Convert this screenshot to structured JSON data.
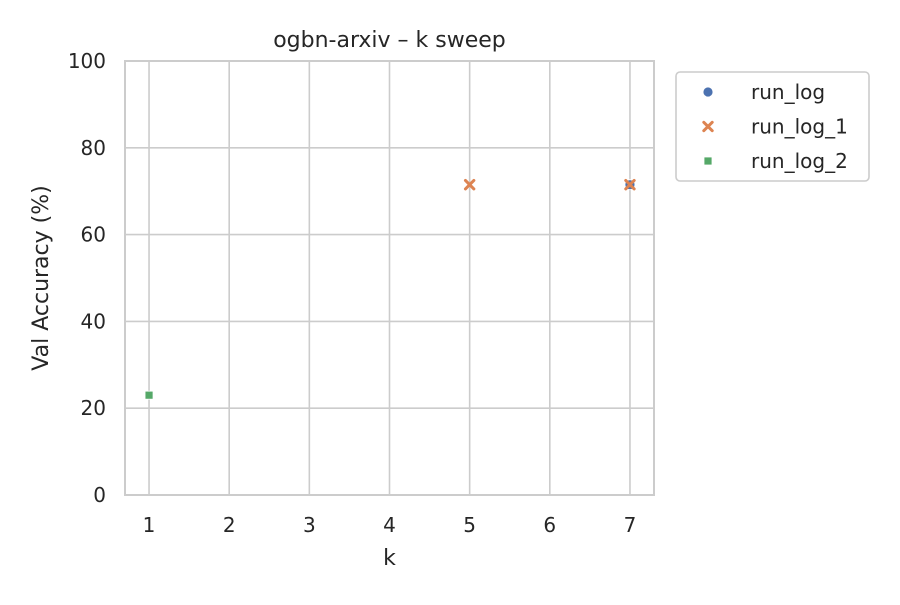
{
  "chart_data": {
    "type": "scatter",
    "title": "ogbn-arxiv – k sweep",
    "xlabel": "k",
    "ylabel": "Val Accuracy (%)",
    "xlim": [
      0.7,
      7.3
    ],
    "ylim": [
      0,
      100
    ],
    "xticks": [
      "1",
      "2",
      "3",
      "4",
      "5",
      "6",
      "7"
    ],
    "yticks": [
      "0",
      "20",
      "40",
      "60",
      "80",
      "100"
    ],
    "grid": true,
    "legend_position": "outside-right",
    "series": [
      {
        "name": "run_log",
        "marker": "circle",
        "color": "#4c72b0",
        "points": [
          {
            "x": 7,
            "y": 71.5
          }
        ]
      },
      {
        "name": "run_log_1",
        "marker": "x",
        "color": "#dd8452",
        "points": [
          {
            "x": 5,
            "y": 71.5
          },
          {
            "x": 7,
            "y": 71.5
          }
        ]
      },
      {
        "name": "run_log_2",
        "marker": "square",
        "color": "#55a868",
        "points": [
          {
            "x": 1,
            "y": 23
          }
        ]
      }
    ]
  }
}
